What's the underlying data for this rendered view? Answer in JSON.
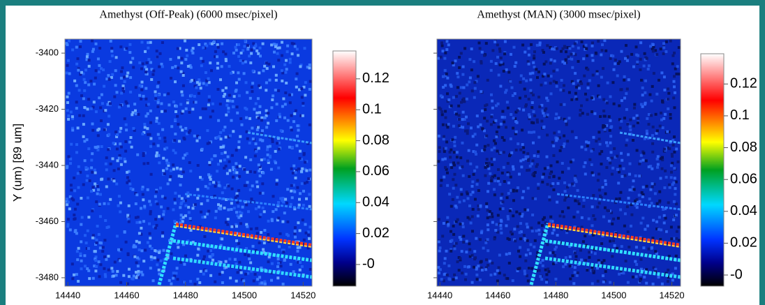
{
  "chart_data": [
    {
      "type": "heatmap",
      "title": "Amethyst (Off-Peak) (6000 msec/pixel)",
      "ylabel": "Y (um)   [89 um]",
      "xlim": [
        14439,
        14523
      ],
      "xticks": [
        14440,
        14460,
        14480,
        14500,
        14520
      ],
      "ylim": [
        -3483,
        -3395
      ],
      "yticks": [
        -3400,
        -3420,
        -3440,
        -3460,
        -3480
      ],
      "ytick_labels": true,
      "clim": [
        -0.014,
        0.138
      ],
      "cticks": [
        {
          "value": 0,
          "label": "-0"
        },
        0.02,
        0.04,
        0.06,
        0.08,
        0.1,
        0.12
      ]
    },
    {
      "type": "heatmap",
      "title": "Amethyst (MAN) (3000 msec/pixel)",
      "xlim": [
        14439,
        14523
      ],
      "xticks": [
        14440,
        14460,
        14480,
        14500,
        14520
      ],
      "ylim": [
        -3483,
        -3395
      ],
      "yticks": [
        -3400,
        -3420,
        -3440,
        -3460,
        -3480
      ],
      "ytick_labels": false,
      "clim": [
        -0.007,
        0.139
      ],
      "cticks": [
        {
          "value": 0,
          "label": "-0"
        },
        0.02,
        0.04,
        0.06,
        0.08,
        0.1,
        0.12
      ]
    }
  ]
}
